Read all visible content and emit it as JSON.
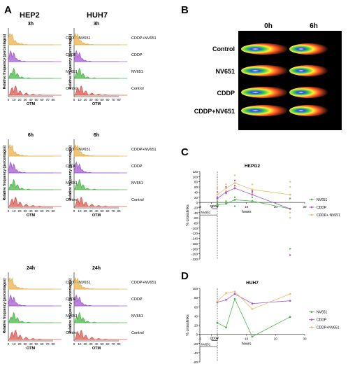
{
  "panels": {
    "A": {
      "letter": "A",
      "columns": [
        "HEP2",
        "HUH7"
      ],
      "times": [
        "3h",
        "6h",
        "24h"
      ],
      "rows": [
        {
          "label": "CDDP+NV651",
          "color": "#E8B14C"
        },
        {
          "label": "CDDP",
          "color": "#A35BD0"
        },
        {
          "label": "NV651",
          "color": "#4CB84A"
        },
        {
          "label": "Control",
          "color": "#D9574E"
        }
      ],
      "ylabel": "Relative frequency (percentages)",
      "xlabel": "OTM",
      "xticks": [
        "0",
        "10",
        "20",
        "30",
        "40",
        "50",
        "60",
        "70",
        "80"
      ]
    },
    "B": {
      "letter": "B",
      "col_labels": [
        "0h",
        "6h"
      ],
      "row_labels": [
        "Control",
        "NV651",
        "CDDP",
        "CDDP+NV651"
      ]
    },
    "C": {
      "letter": "C"
    },
    "D": {
      "letter": "D"
    }
  },
  "chart_data": [
    {
      "type": "line",
      "title": "HEPG2",
      "xlabel": "hours",
      "ylabel": "% crosslinks",
      "xlim": [
        -6,
        30
      ],
      "ylim": [
        -220,
        120
      ],
      "xticks": [
        -6,
        -2,
        0,
        10,
        20,
        30
      ],
      "xtick_labels": [
        "-6",
        "-2",
        "0",
        "10",
        "20",
        "30"
      ],
      "yticks": [
        120,
        100,
        80,
        60,
        40,
        20,
        0,
        -20,
        -40,
        -60,
        -80,
        -100,
        -120,
        -140,
        -160,
        -180,
        -200,
        -220
      ],
      "treatment_labels": [
        "CDDP",
        "NV651"
      ],
      "series": [
        {
          "name": "NV651",
          "color": "#4CB84A",
          "x": [
            0,
            3,
            6,
            12,
            25
          ],
          "y": [
            -10,
            -5,
            10,
            5,
            -25
          ],
          "scatter": [
            [
              0,
              -5
            ],
            [
              0,
              5
            ],
            [
              3,
              5
            ],
            [
              6,
              -15
            ],
            [
              6,
              20
            ],
            [
              12,
              20
            ],
            [
              12,
              30
            ],
            [
              25,
              15
            ],
            [
              25,
              -180
            ]
          ]
        },
        {
          "name": "CDDP",
          "color": "#A35BD0",
          "x": [
            0,
            3,
            6,
            12,
            25
          ],
          "y": [
            15,
            40,
            55,
            30,
            -25
          ],
          "scatter": [
            [
              0,
              20
            ],
            [
              0,
              40
            ],
            [
              3,
              35
            ],
            [
              3,
              60
            ],
            [
              6,
              65
            ],
            [
              6,
              85
            ],
            [
              12,
              40
            ],
            [
              12,
              45
            ],
            [
              25,
              30
            ],
            [
              25,
              -205
            ]
          ]
        },
        {
          "name": "CDDP+ NV651",
          "color": "#E8C06A",
          "x": [
            0,
            3,
            6,
            12,
            25
          ],
          "y": [
            30,
            55,
            75,
            50,
            30
          ],
          "scatter": [
            [
              0,
              55
            ],
            [
              0,
              60
            ],
            [
              3,
              45
            ],
            [
              3,
              70
            ],
            [
              6,
              105
            ],
            [
              6,
              60
            ],
            [
              12,
              70
            ],
            [
              12,
              35
            ],
            [
              25,
              80
            ],
            [
              25,
              60
            ],
            [
              25,
              -40
            ],
            [
              25,
              -60
            ]
          ]
        }
      ],
      "legend": "right"
    },
    {
      "type": "line",
      "title": "HUH7",
      "xlabel": "hours",
      "ylabel": "% crosslinks",
      "xlim": [
        -6,
        30
      ],
      "ylim": [
        -60,
        100
      ],
      "xticks": [
        -6,
        -2,
        0,
        10,
        20,
        30
      ],
      "xtick_labels": [
        "-6",
        "-2",
        "0",
        "10",
        "20",
        "30"
      ],
      "yticks": [
        100,
        80,
        60,
        40,
        20,
        0,
        -20,
        -40,
        -60
      ],
      "treatment_labels": [
        "CDDP",
        "NV651"
      ],
      "series": [
        {
          "name": "NV651",
          "color": "#4CB84A",
          "x": [
            0,
            3,
            6,
            12,
            25
          ],
          "y": [
            25,
            15,
            77,
            -5,
            38
          ]
        },
        {
          "name": "CDDP",
          "color": "#A35BD0",
          "x": [
            0,
            3,
            6,
            12,
            25
          ],
          "y": [
            70,
            75,
            88,
            67,
            73
          ]
        },
        {
          "name": "CDDP+NV651",
          "color": "#E8C06A",
          "x": [
            0,
            3,
            6,
            12,
            25
          ],
          "y": [
            72,
            90,
            93,
            55,
            88
          ]
        }
      ],
      "legend": "right"
    }
  ]
}
